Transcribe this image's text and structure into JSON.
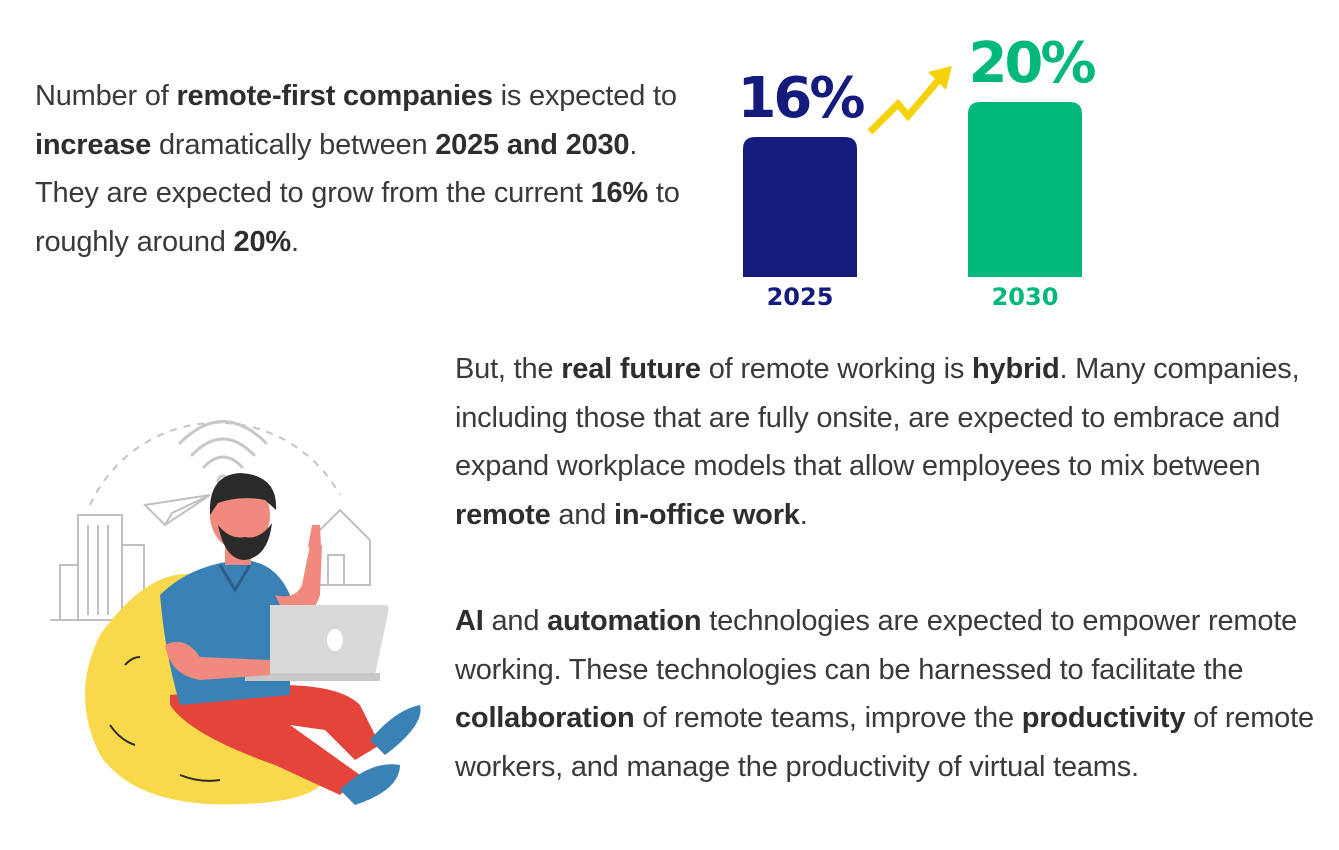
{
  "intro": {
    "p1": "Number of ",
    "b1": "remote-first companies",
    "p2": " is expected to ",
    "b2": "increase",
    "p3": " dramatically between ",
    "b3": "2025 and 2030",
    "p4": ". They are expected to grow from the current ",
    "b4": "16%",
    "p5": " to roughly around ",
    "b5": "20%",
    "p6": "."
  },
  "hybrid": {
    "p1": "But, the ",
    "b1": "real future",
    "p2": " of remote working is ",
    "b2": "hybrid",
    "p3": ". Many companies, including those that are fully onsite, are expected to embrace and expand workplace models that allow employees to mix between ",
    "b3": "remote",
    "p4": " and ",
    "b4": "in-office work",
    "p5": "."
  },
  "ai": {
    "b1": "AI",
    "p1": " and ",
    "b2": "automation",
    "p2": " technologies are expected to empower remote working. These technologies can be harnessed to facilitate the ",
    "b3": "collaboration",
    "p3": " of remote teams, improve the ",
    "b4": "productivity",
    "p4": " of remote workers, and manage the productivity of virtual teams."
  },
  "chart_data": {
    "type": "bar",
    "categories": [
      "2025",
      "2030"
    ],
    "values": [
      16,
      20
    ],
    "value_labels": [
      "16%",
      "20%"
    ],
    "colors": [
      "#131c7c",
      "#00b87a"
    ],
    "arrow_color": "#f5d20a",
    "ylim": [
      0,
      20
    ],
    "grid": false,
    "legend": "none"
  },
  "illustration": {
    "icons": [
      "wifi-icon",
      "paper-plane-icon",
      "buildings-icon",
      "house-icon",
      "person-with-laptop-icon",
      "bean-bag-icon"
    ],
    "colors": {
      "beanbag": "#f8d94c",
      "shirt": "#3a82b5",
      "pants": "#e4443a",
      "skin": "#f08a7e",
      "hair": "#2a2a2a",
      "laptop": "#d9d9d9",
      "shoes": "#3a82b5",
      "line": "#b8b8b8"
    }
  }
}
